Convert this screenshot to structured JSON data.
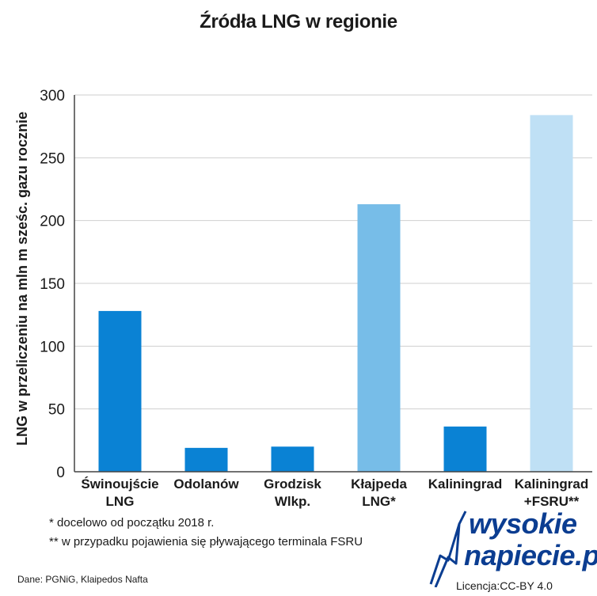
{
  "chart_data": {
    "type": "bar",
    "title": "Źródła LNG w regionie",
    "ylabel": "LNG w przeliczeniu na mln m sześc. gazu rocznie",
    "xlabel": "",
    "ylim": [
      0,
      300
    ],
    "yticks": [
      0,
      50,
      100,
      150,
      200,
      250,
      300
    ],
    "grid": true,
    "categories": [
      [
        "Świnoujście",
        "LNG"
      ],
      [
        "Odolanów"
      ],
      [
        "Grodzisk",
        "Wlkp."
      ],
      [
        "Kłajpeda",
        "LNG*"
      ],
      [
        "Kaliningrad"
      ],
      [
        "Kaliningrad",
        "+FSRU**"
      ]
    ],
    "values": [
      128,
      19,
      20,
      213,
      36,
      284
    ],
    "colors": [
      "#0a82d4",
      "#0a82d4",
      "#0a82d4",
      "#77bde8",
      "#0a82d4",
      "#bfe0f5"
    ]
  },
  "notes": {
    "note1": "* docelowo od początku 2018 r.",
    "note2": "** w przypadku pojawienia się pływającego terminala FSRU"
  },
  "source": "Dane: PGNiG, Klaipedos Nafta",
  "logo": {
    "line1": "wysokie",
    "line2": "napiecie.pl",
    "license": "Licencja:CC-BY 4.0"
  }
}
